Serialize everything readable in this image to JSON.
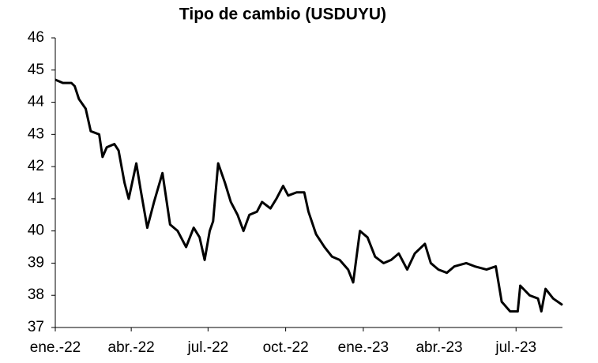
{
  "chart_data": {
    "type": "line",
    "title": "Tipo de cambio (USDUYU)",
    "x": [
      0,
      9,
      19,
      23,
      28,
      36,
      42,
      52,
      56,
      61,
      70,
      75,
      82,
      87,
      96,
      101,
      109,
      117,
      127,
      136,
      145,
      155,
      164,
      171,
      177,
      183,
      187,
      193,
      201,
      208,
      216,
      223,
      230,
      239,
      245,
      255,
      262,
      270,
      276,
      286,
      295,
      300,
      309,
      319,
      328,
      337,
      347,
      353,
      361,
      370,
      379,
      389,
      398,
      407,
      417,
      426,
      438,
      445,
      454,
      464,
      473,
      487,
      497,
      511,
      522,
      529,
      539,
      548,
      551,
      562,
      572,
      576,
      581,
      590,
      601
    ],
    "series": [
      {
        "name": "USDUYU",
        "color": "#000000",
        "values": [
          44.7,
          44.6,
          44.6,
          44.5,
          44.1,
          43.8,
          43.1,
          43.0,
          42.3,
          42.6,
          42.7,
          42.5,
          41.5,
          41.0,
          42.1,
          41.3,
          40.1,
          40.9,
          41.8,
          40.2,
          40.0,
          39.5,
          40.1,
          39.8,
          39.1,
          40.0,
          40.3,
          42.1,
          41.5,
          40.9,
          40.5,
          40.0,
          40.5,
          40.6,
          40.9,
          40.7,
          41.0,
          41.4,
          41.1,
          41.2,
          41.2,
          40.6,
          39.9,
          39.5,
          39.2,
          39.1,
          38.8,
          38.4,
          40.0,
          39.8,
          39.2,
          39.0,
          39.1,
          39.3,
          38.8,
          39.3,
          39.6,
          39.0,
          38.8,
          38.7,
          38.9,
          39.0,
          38.9,
          38.8,
          38.9,
          37.8,
          37.5,
          37.5,
          38.3,
          38.0,
          37.9,
          37.5,
          38.2,
          37.9,
          37.7
        ]
      }
    ],
    "xlim": [
      0,
      601
    ],
    "xticks": [
      {
        "value": 0,
        "label": "ene.-22"
      },
      {
        "value": 90,
        "label": "abr.-22"
      },
      {
        "value": 181,
        "label": "jul.-22"
      },
      {
        "value": 273,
        "label": "oct.-22"
      },
      {
        "value": 365,
        "label": "ene.-23"
      },
      {
        "value": 455,
        "label": "abr.-23"
      },
      {
        "value": 546,
        "label": "jul.-23"
      }
    ],
    "ylim": [
      37,
      46
    ],
    "yticks": [
      37,
      38,
      39,
      40,
      41,
      42,
      43,
      44,
      45,
      46
    ],
    "grid": false
  }
}
